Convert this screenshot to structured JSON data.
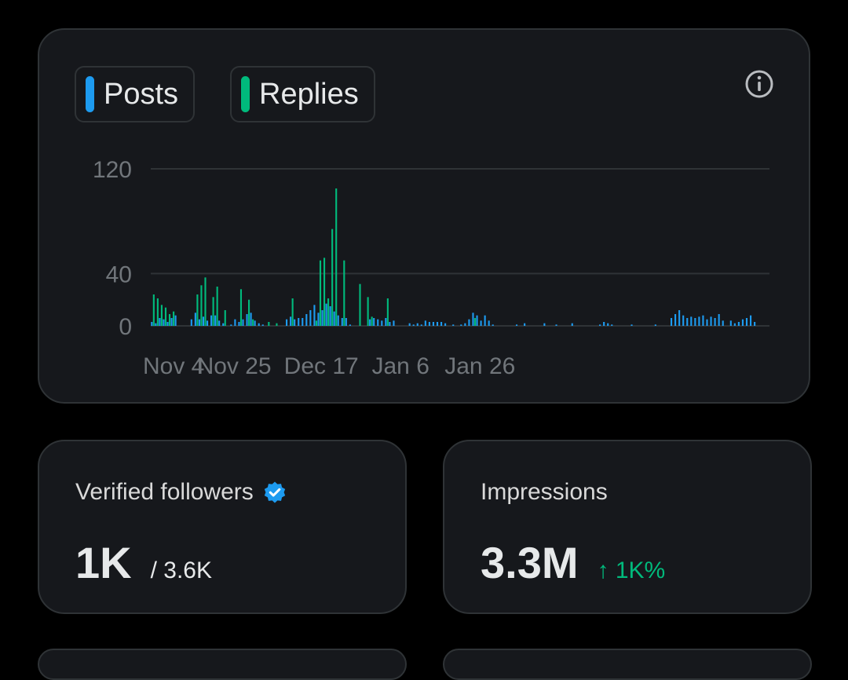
{
  "legend": {
    "posts_label": "Posts",
    "replies_label": "Replies",
    "posts_color": "#1d9bf0",
    "replies_color": "#00ba7c"
  },
  "info_icon": "info-icon",
  "chart_data": {
    "type": "bar",
    "stacked": false,
    "ylim": [
      0,
      120
    ],
    "y_ticks": [
      "120",
      "40",
      "0"
    ],
    "y_tick_values": [
      120,
      40,
      0
    ],
    "x_tick_labels": [
      "Nov 4",
      "Nov 25",
      "Dec 17",
      "Jan 6",
      "Jan 26"
    ],
    "x_tick_index": [
      0,
      21,
      43,
      63,
      83
    ],
    "categories_start": "Nov 4",
    "grid": true,
    "series": [
      {
        "name": "Posts",
        "color": "#1d9bf0",
        "values": [
          3,
          2,
          6,
          5,
          3,
          6,
          8,
          0,
          0,
          0,
          5,
          10,
          5,
          7,
          4,
          8,
          8,
          4,
          2,
          0,
          1,
          5,
          3,
          5,
          9,
          10,
          4,
          2,
          1,
          0,
          0,
          0,
          0,
          0,
          5,
          7,
          5,
          6,
          6,
          9,
          12,
          16,
          10,
          12,
          17,
          15,
          11,
          8,
          6,
          6,
          1,
          0,
          0,
          0,
          0,
          5,
          6,
          5,
          4,
          6,
          3,
          4,
          0,
          0,
          0,
          2,
          1,
          2,
          1,
          4,
          3,
          3,
          3,
          3,
          2,
          0,
          1,
          0,
          1,
          2,
          5,
          10,
          8,
          4,
          8,
          4,
          1,
          0,
          0,
          0,
          0,
          0,
          1,
          0,
          2,
          0,
          0,
          0,
          0,
          2,
          0,
          0,
          1,
          0,
          0,
          0,
          2,
          0,
          0,
          0,
          0,
          0,
          0,
          1,
          3,
          2,
          1,
          0,
          0,
          0,
          0,
          1,
          0,
          0,
          0,
          0,
          0,
          1,
          0,
          0,
          0,
          6,
          9,
          12,
          8,
          6,
          7,
          6,
          7,
          8,
          5,
          7,
          6,
          9,
          4,
          0,
          4,
          2,
          3,
          5,
          6,
          8,
          3,
          0,
          0,
          0
        ]
      },
      {
        "name": "Replies",
        "color": "#00ba7c",
        "values": [
          24,
          21,
          16,
          14,
          9,
          11,
          0,
          0,
          0,
          0,
          0,
          24,
          31,
          37,
          0,
          22,
          30,
          0,
          12,
          0,
          0,
          0,
          28,
          0,
          20,
          5,
          0,
          0,
          0,
          3,
          0,
          2,
          0,
          0,
          0,
          21,
          0,
          0,
          0,
          0,
          0,
          4,
          50,
          52,
          21,
          74,
          105,
          0,
          50,
          0,
          0,
          0,
          32,
          0,
          22,
          7,
          0,
          0,
          0,
          21,
          0,
          0,
          0,
          0,
          0,
          0,
          0,
          0,
          0,
          0,
          0,
          0,
          0,
          0,
          0,
          0,
          0,
          0,
          0,
          0,
          0,
          6,
          0,
          0,
          0,
          0,
          0,
          0,
          0,
          0,
          0,
          0,
          0,
          0,
          0,
          0,
          0,
          0,
          0,
          0,
          0,
          0,
          0,
          0,
          0,
          0,
          0,
          0,
          0,
          0,
          0,
          0,
          0,
          0,
          0,
          0,
          0,
          0,
          0,
          0,
          0,
          0,
          0,
          0,
          0,
          0,
          0,
          0,
          0,
          0,
          0,
          0,
          0,
          0,
          0,
          0,
          0,
          0,
          0,
          0,
          0,
          0,
          0,
          0,
          0,
          0,
          0,
          0,
          0,
          0,
          0,
          0,
          0,
          0,
          0
        ]
      }
    ]
  },
  "followers": {
    "label": "Verified followers",
    "value": "1K",
    "total": "/ 3.6K"
  },
  "impressions": {
    "label": "Impressions",
    "value": "3.3M",
    "delta": "↑ 1K%"
  }
}
